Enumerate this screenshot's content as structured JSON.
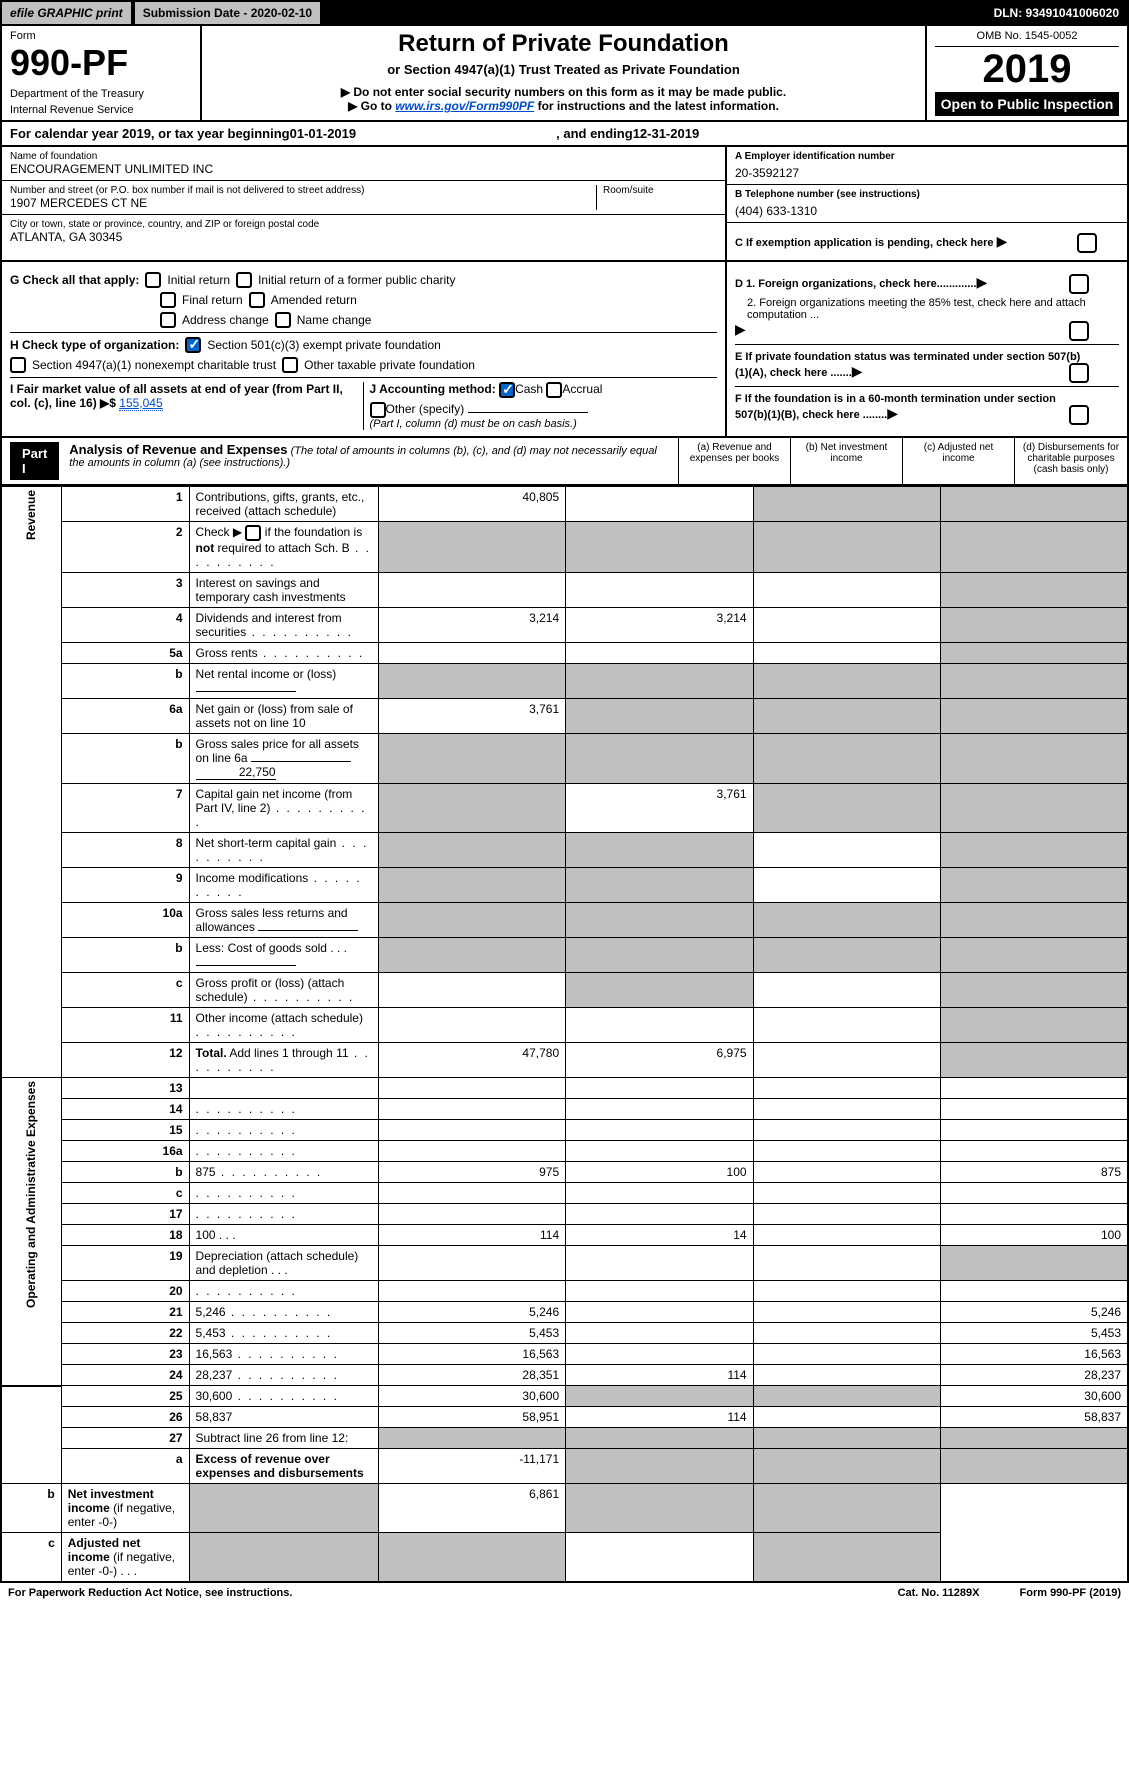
{
  "topbar": {
    "efile": "efile GRAPHIC print",
    "subdate": "Submission Date - 2020-02-10",
    "dln": "DLN: 93491041006020"
  },
  "header": {
    "form_label": "Form",
    "form_num": "990-PF",
    "dept1": "Department of the Treasury",
    "dept2": "Internal Revenue Service",
    "title": "Return of Private Foundation",
    "subtitle": "or Section 4947(a)(1) Trust Treated as Private Foundation",
    "instr1": "▶ Do not enter social security numbers on this form as it may be made public.",
    "instr2_pre": "▶ Go to ",
    "instr2_link": "www.irs.gov/Form990PF",
    "instr2_post": " for instructions and the latest information.",
    "omb": "OMB No. 1545-0052",
    "year": "2019",
    "open": "Open to Public Inspection"
  },
  "calyear": {
    "pre": "For calendar year 2019, or tax year beginning ",
    "begin": "01-01-2019",
    "mid": ", and ending ",
    "end": "12-31-2019"
  },
  "entity": {
    "name_label": "Name of foundation",
    "name": "ENCOURAGEMENT UNLIMITED INC",
    "addr_label": "Number and street (or P.O. box number if mail is not delivered to street address)",
    "room_label": "Room/suite",
    "addr": "1907 MERCEDES CT NE",
    "city_label": "City or town, state or province, country, and ZIP or foreign postal code",
    "city": "ATLANTA, GA  30345",
    "ein_label": "A Employer identification number",
    "ein": "20-3592127",
    "phone_label": "B Telephone number (see instructions)",
    "phone": "(404) 633-1310",
    "c_label": "C If exemption application is pending, check here",
    "d1": "D 1. Foreign organizations, check here.............",
    "d2": "2. Foreign organizations meeting the 85% test, check here and attach computation ...",
    "e_label": "E If private foundation status was terminated under section 507(b)(1)(A), check here .......",
    "f_label": "F If the foundation is in a 60-month termination under section 507(b)(1)(B), check here ........"
  },
  "checks": {
    "g_label": "G Check all that apply:",
    "g_items": [
      "Initial return",
      "Initial return of a former public charity",
      "Final return",
      "Amended return",
      "Address change",
      "Name change"
    ],
    "h_label": "H Check type of organization:",
    "h1": "Section 501(c)(3) exempt private foundation",
    "h2": "Section 4947(a)(1) nonexempt charitable trust",
    "h3": "Other taxable private foundation",
    "i_label": "I Fair market value of all assets at end of year (from Part II, col. (c), line 16) ▶$",
    "i_value": "155,045",
    "j_label": "J Accounting method:",
    "j_cash": "Cash",
    "j_accrual": "Accrual",
    "j_other": "Other (specify)",
    "j_note": "(Part I, column (d) must be on cash basis.)"
  },
  "part1": {
    "label": "Part I",
    "title": "Analysis of Revenue and Expenses",
    "title_note": "(The total of amounts in columns (b), (c), and (d) may not necessarily equal the amounts in column (a) (see instructions).)",
    "col_a": "(a) Revenue and expenses per books",
    "col_b": "(b) Net investment income",
    "col_c": "(c) Adjusted net income",
    "col_d": "(d) Disbursements for charitable purposes (cash basis only)"
  },
  "sides": {
    "revenue": "Revenue",
    "expenses": "Operating and Administrative Expenses"
  },
  "rows": [
    {
      "n": "1",
      "d": "Contributions, gifts, grants, etc., received (attach schedule)",
      "a": "40,805",
      "b": "",
      "c_shade": true,
      "d_shade": true
    },
    {
      "n": "2",
      "d_pre": "Check ▶ ",
      "d_post": " if the foundation is <b>not</b> required to attach Sch. B",
      "dots": true,
      "a_shade": true,
      "b_shade": true,
      "c_shade": true,
      "d_shade": true,
      "check": true
    },
    {
      "n": "3",
      "d": "Interest on savings and temporary cash investments",
      "a": "",
      "b": "",
      "c": "",
      "d_shade": true
    },
    {
      "n": "4",
      "d": "Dividends and interest from securities",
      "dots": true,
      "a": "3,214",
      "b": "3,214",
      "c": "",
      "d_shade": true
    },
    {
      "n": "5a",
      "d": "Gross rents",
      "dots": true,
      "a": "",
      "b": "",
      "c": "",
      "d_shade": true
    },
    {
      "n": "b",
      "d": "Net rental income or (loss)",
      "subline": true,
      "a_shade": true,
      "b_shade": true,
      "c_shade": true,
      "d_shade": true
    },
    {
      "n": "6a",
      "d": "Net gain or (loss) from sale of assets not on line 10",
      "a": "3,761",
      "b_shade": true,
      "c_shade": true,
      "d_shade": true
    },
    {
      "n": "b",
      "d_pre": "Gross sales price for all assets on line 6a ",
      "d_val": "22,750",
      "subline": true,
      "a_shade": true,
      "b_shade": true,
      "c_shade": true,
      "d_shade": true
    },
    {
      "n": "7",
      "d": "Capital gain net income (from Part IV, line 2)",
      "dots": true,
      "a_shade": true,
      "b": "3,761",
      "c_shade": true,
      "d_shade": true
    },
    {
      "n": "8",
      "d": "Net short-term capital gain",
      "dots": true,
      "a_shade": true,
      "b_shade": true,
      "c": "",
      "d_shade": true
    },
    {
      "n": "9",
      "d": "Income modifications",
      "dots": true,
      "a_shade": true,
      "b_shade": true,
      "c": "",
      "d_shade": true
    },
    {
      "n": "10a",
      "d": "Gross sales less returns and allowances",
      "subline": true,
      "a_shade": true,
      "b_shade": true,
      "c_shade": true,
      "d_shade": true
    },
    {
      "n": "b",
      "d": "Less: Cost of goods sold",
      "dots_short": true,
      "subline": true,
      "a_shade": true,
      "b_shade": true,
      "c_shade": true,
      "d_shade": true
    },
    {
      "n": "c",
      "d": "Gross profit or (loss) (attach schedule)",
      "dots": true,
      "a": "",
      "b_shade": true,
      "c": "",
      "d_shade": true
    },
    {
      "n": "11",
      "d": "Other income (attach schedule)",
      "dots": true,
      "a": "",
      "b": "",
      "c": "",
      "d_shade": true
    },
    {
      "n": "12",
      "d": "<b>Total.</b> Add lines 1 through 11",
      "dots": true,
      "a": "47,780",
      "b": "6,975",
      "c": "",
      "d_shade": true
    },
    {
      "n": "13",
      "d": "",
      "a": "",
      "b": "",
      "c": ""
    },
    {
      "n": "14",
      "d": "",
      "dots": true,
      "a": "",
      "b": "",
      "c": ""
    },
    {
      "n": "15",
      "d": "",
      "dots": true,
      "a": "",
      "b": "",
      "c": ""
    },
    {
      "n": "16a",
      "d": "",
      "dots": true,
      "a": "",
      "b": "",
      "c": ""
    },
    {
      "n": "b",
      "d": "875",
      "dots": true,
      "a": "975",
      "b": "100",
      "c": ""
    },
    {
      "n": "c",
      "d": "",
      "dots": true,
      "a": "",
      "b": "",
      "c": ""
    },
    {
      "n": "17",
      "d": "",
      "dots": true,
      "a": "",
      "b": "",
      "c": ""
    },
    {
      "n": "18",
      "d": "100",
      "dots_short": true,
      "a": "114",
      "b": "14",
      "c": ""
    },
    {
      "n": "19",
      "d": "Depreciation (attach schedule) and depletion",
      "dots_short": true,
      "a": "",
      "b": "",
      "c": "",
      "d_shade": true
    },
    {
      "n": "20",
      "d": "",
      "dots": true,
      "a": "",
      "b": "",
      "c": ""
    },
    {
      "n": "21",
      "d": "5,246",
      "dots": true,
      "a": "5,246",
      "b": "",
      "c": ""
    },
    {
      "n": "22",
      "d": "5,453",
      "dots": true,
      "a": "5,453",
      "b": "",
      "c": ""
    },
    {
      "n": "23",
      "d": "16,563",
      "dots": true,
      "a": "16,563",
      "b": "",
      "c": ""
    },
    {
      "n": "24",
      "d": "28,237",
      "dots": true,
      "a": "28,351",
      "b": "114",
      "c": ""
    },
    {
      "n": "25",
      "d": "30,600",
      "dots": true,
      "a": "30,600",
      "b_shade": true,
      "c_shade": true
    },
    {
      "n": "26",
      "d": "58,837",
      "a": "58,951",
      "b": "114",
      "c": ""
    },
    {
      "n": "27",
      "d": "Subtract line 26 from line 12:",
      "a_shade": true,
      "b_shade": true,
      "c_shade": true,
      "d_shade": true
    },
    {
      "n": "a",
      "d": "<b>Excess of revenue over expenses and disbursements</b>",
      "a": "-11,171",
      "b_shade": true,
      "c_shade": true,
      "d_shade": true
    },
    {
      "n": "b",
      "d": "<b>Net investment income</b> (if negative, enter -0-)",
      "a_shade": true,
      "b": "6,861",
      "c_shade": true,
      "d_shade": true
    },
    {
      "n": "c",
      "d": "<b>Adjusted net income</b> (if negative, enter -0-)",
      "dots_short": true,
      "a_shade": true,
      "b_shade": true,
      "c": "",
      "d_shade": true
    }
  ],
  "footer": {
    "left": "For Paperwork Reduction Act Notice, see instructions.",
    "mid": "Cat. No. 11289X",
    "right": "Form 990-PF (2019)"
  }
}
